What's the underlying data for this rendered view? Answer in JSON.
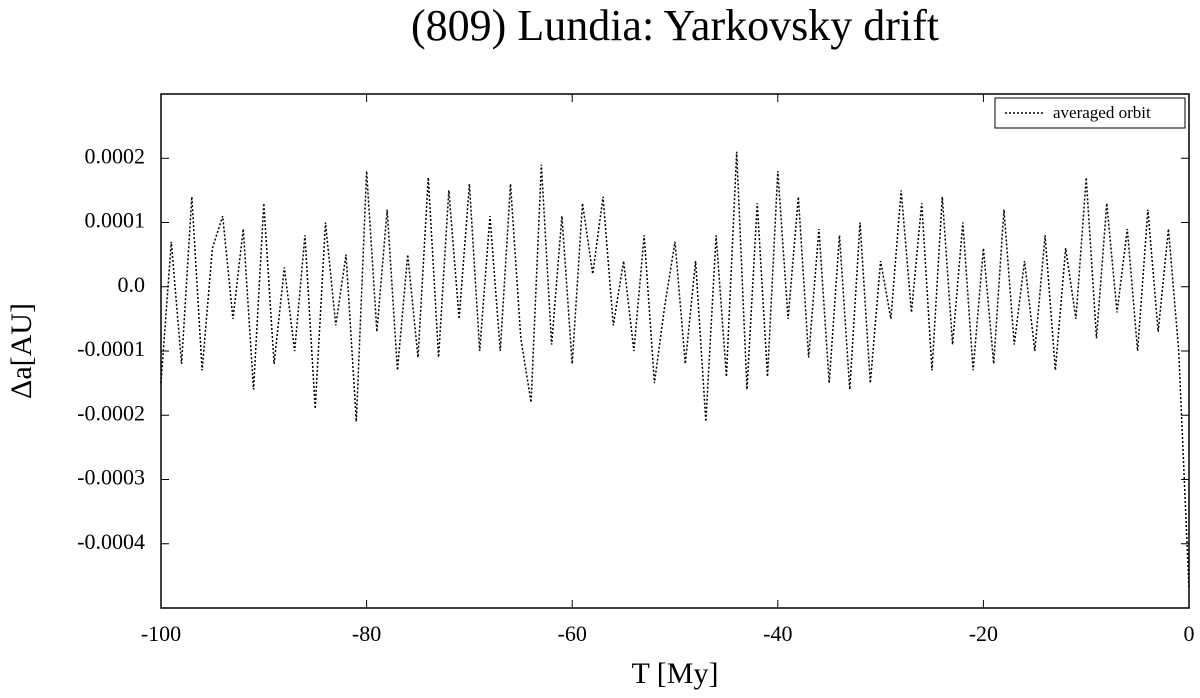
{
  "chart_data": {
    "type": "line",
    "title": "(809) Lundia: Yarkovsky drift",
    "xlabel": "T [My]",
    "ylabel": "Δa[AU]",
    "x": [
      -100,
      -99,
      -98,
      -97,
      -96,
      -95,
      -94,
      -93,
      -92,
      -91,
      -90,
      -89,
      -88,
      -87,
      -86,
      -85,
      -84,
      -83,
      -82,
      -81,
      -80,
      -79,
      -78,
      -77,
      -76,
      -75,
      -74,
      -73,
      -72,
      -71,
      -70,
      -69,
      -68,
      -67,
      -66,
      -65,
      -64,
      -63,
      -62,
      -61,
      -60,
      -59,
      -58,
      -57,
      -56,
      -55,
      -54,
      -53,
      -52,
      -51,
      -50,
      -49,
      -48,
      -47,
      -46,
      -45,
      -44,
      -43,
      -42,
      -41,
      -40,
      -39,
      -38,
      -37,
      -36,
      -35,
      -34,
      -33,
      -32,
      -31,
      -30,
      -29,
      -28,
      -27,
      -26,
      -25,
      -24,
      -23,
      -22,
      -21,
      -20,
      -19,
      -18,
      -17,
      -16,
      -15,
      -14,
      -13,
      -12,
      -11,
      -10,
      -9,
      -8,
      -7,
      -6,
      -5,
      -4,
      -3,
      -2,
      -1,
      0
    ],
    "series": [
      {
        "name": "averaged orbit",
        "color": "#000000",
        "values": [
          -0.00015,
          7e-05,
          -0.00012,
          0.00014,
          -0.00013,
          6e-05,
          0.00011,
          -5e-05,
          9e-05,
          -0.00016,
          0.00013,
          -0.00012,
          3e-05,
          -0.0001,
          8e-05,
          -0.00019,
          0.0001,
          -6e-05,
          5e-05,
          -0.00021,
          0.00018,
          -7e-05,
          0.00012,
          -0.00013,
          5e-05,
          -0.00011,
          0.00017,
          -0.00011,
          0.00015,
          -5e-05,
          0.00016,
          -0.0001,
          0.00011,
          -0.0001,
          0.00016,
          -8e-05,
          -0.00018,
          0.00019,
          -9e-05,
          0.00011,
          -0.00012,
          0.00013,
          2e-05,
          0.00014,
          -6e-05,
          4e-05,
          -0.0001,
          8e-05,
          -0.00015,
          -3e-05,
          7e-05,
          -0.00012,
          4e-05,
          -0.00021,
          8e-05,
          -0.00014,
          0.00021,
          -0.00016,
          0.00013,
          -0.00014,
          0.00018,
          -5e-05,
          0.00014,
          -0.00011,
          9e-05,
          -0.00015,
          8e-05,
          -0.00016,
          0.0001,
          -0.00015,
          4e-05,
          -5e-05,
          0.00015,
          -4e-05,
          0.00013,
          -0.00013,
          0.00014,
          -9e-05,
          0.0001,
          -0.00013,
          6e-05,
          -0.00012,
          0.00012,
          -9e-05,
          4e-05,
          -0.0001,
          8e-05,
          -0.00013,
          6e-05,
          -5e-05,
          0.00017,
          -8e-05,
          0.00013,
          -4e-05,
          9e-05,
          -0.0001,
          0.00012,
          -7e-05,
          9e-05,
          -0.0001,
          -0.00047
        ]
      }
    ],
    "xlim": [
      -100,
      0
    ],
    "xticks": [
      -100,
      -80,
      -60,
      -40,
      -20,
      0
    ],
    "ylim": [
      -0.0005,
      0.0003
    ],
    "yticks": [
      0.0002,
      0.0001,
      {
        "value": 0,
        "label": "0.0"
      },
      -0.0001,
      -0.0002,
      -0.0003,
      -0.0004
    ],
    "legend": "top-right"
  }
}
